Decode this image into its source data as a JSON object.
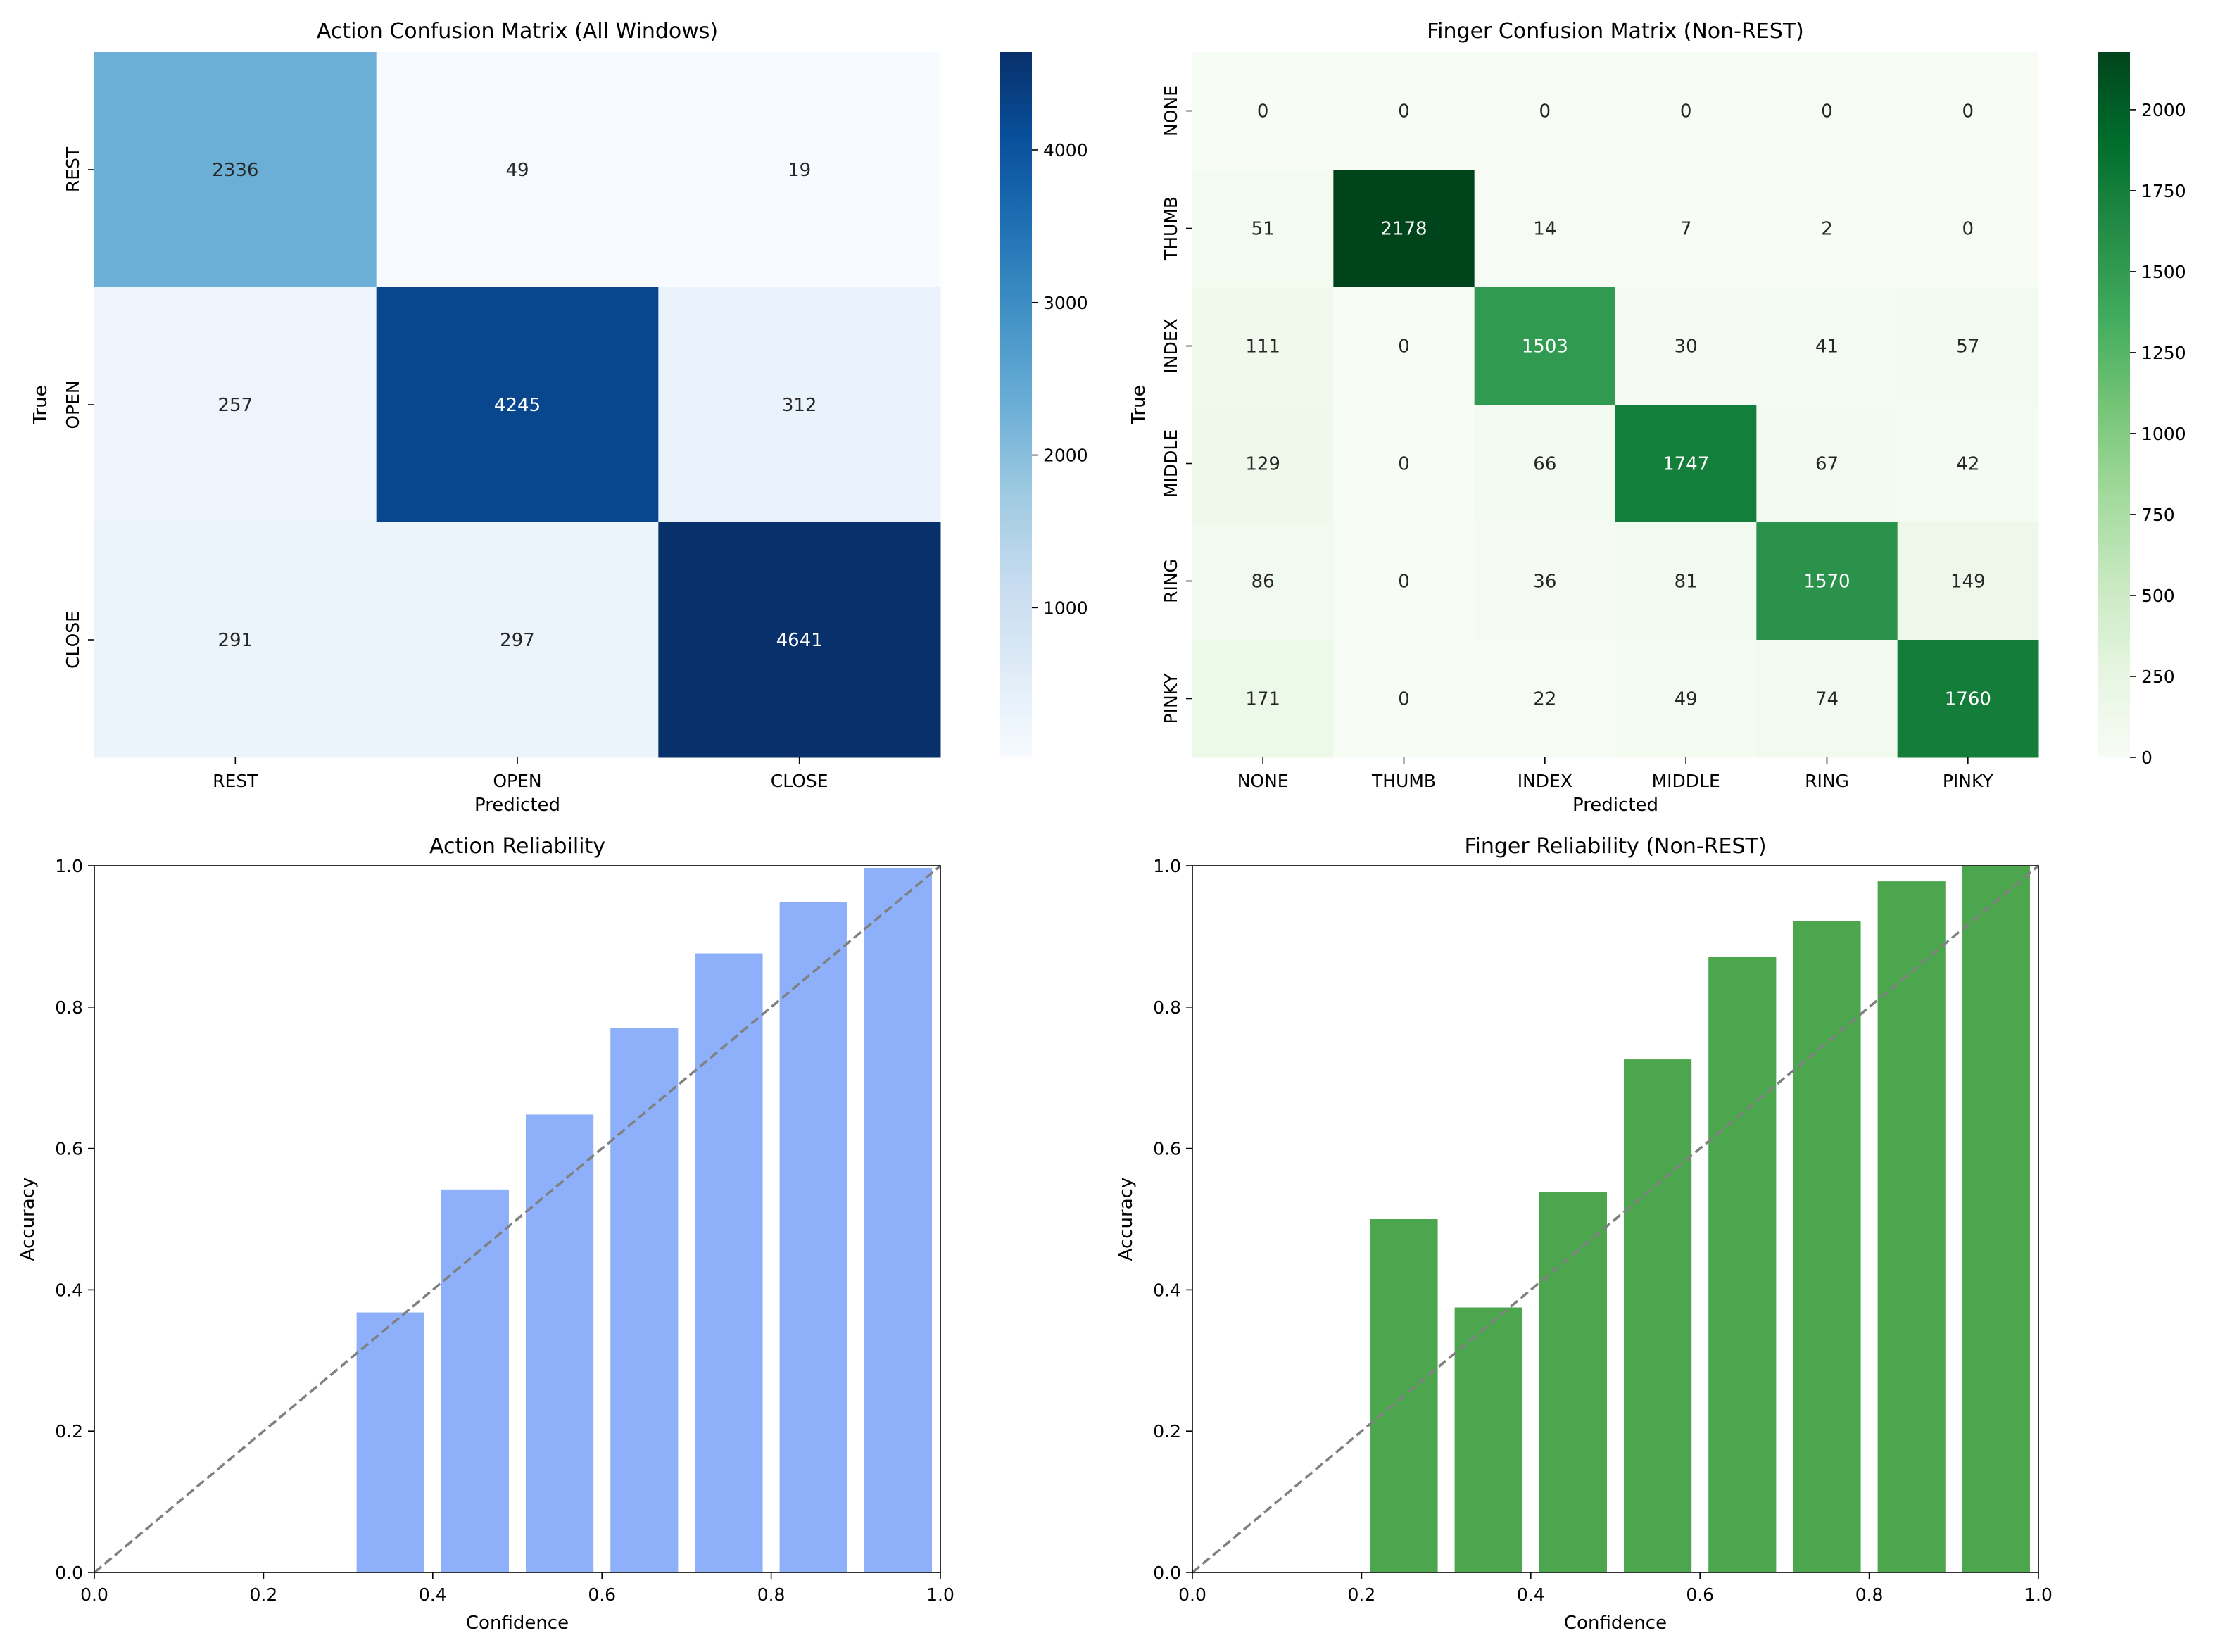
{
  "chart_data": [
    {
      "type": "heatmap",
      "title": "Action Confusion Matrix (All Windows)",
      "xlabel": "Predicted",
      "ylabel": "True",
      "x_categories": [
        "REST",
        "OPEN",
        "CLOSE"
      ],
      "y_categories": [
        "REST",
        "OPEN",
        "CLOSE"
      ],
      "values": [
        [
          2336,
          49,
          19
        ],
        [
          257,
          4245,
          312
        ],
        [
          291,
          297,
          4641
        ]
      ],
      "colormap": "Blues",
      "colors": [
        "#f7fbff",
        "#deebf7",
        "#c6dbef",
        "#9ecae1",
        "#6baed6",
        "#4292c6",
        "#2171b5",
        "#08519c",
        "#08306b"
      ],
      "vmin": 19,
      "vmax": 4641,
      "colorbar_ticks": [
        1000,
        2000,
        3000,
        4000
      ]
    },
    {
      "type": "heatmap",
      "title": "Finger Confusion Matrix (Non-REST)",
      "xlabel": "Predicted",
      "ylabel": "True",
      "x_categories": [
        "NONE",
        "THUMB",
        "INDEX",
        "MIDDLE",
        "RING",
        "PINKY"
      ],
      "y_categories": [
        "NONE",
        "THUMB",
        "INDEX",
        "MIDDLE",
        "RING",
        "PINKY"
      ],
      "values": [
        [
          0,
          0,
          0,
          0,
          0,
          0
        ],
        [
          51,
          2178,
          14,
          7,
          2,
          0
        ],
        [
          111,
          0,
          1503,
          30,
          41,
          57
        ],
        [
          129,
          0,
          66,
          1747,
          67,
          42
        ],
        [
          86,
          0,
          36,
          81,
          1570,
          149
        ],
        [
          171,
          0,
          22,
          49,
          74,
          1760
        ]
      ],
      "colormap": "Greens",
      "colors": [
        "#f7fcf5",
        "#e5f5e0",
        "#c7e9c0",
        "#a1d99b",
        "#74c476",
        "#41ab5d",
        "#238b45",
        "#006d2c",
        "#00441b"
      ],
      "vmin": 0,
      "vmax": 2178,
      "colorbar_ticks": [
        0,
        250,
        500,
        750,
        1000,
        1250,
        1500,
        1750,
        2000
      ]
    },
    {
      "type": "bar",
      "title": "Action Reliability",
      "xlabel": "Confidence",
      "ylabel": "Accuracy",
      "bin_centers": [
        0.35,
        0.45,
        0.55,
        0.65,
        0.75,
        0.85,
        0.95
      ],
      "bar_width": 0.08,
      "values": [
        0.368,
        0.542,
        0.648,
        0.77,
        0.876,
        0.949,
        0.997
      ],
      "xlim": [
        0,
        1
      ],
      "ylim": [
        0,
        1
      ],
      "x_ticks": [
        0.0,
        0.2,
        0.4,
        0.6,
        0.8,
        1.0
      ],
      "y_ticks": [
        0.0,
        0.2,
        0.4,
        0.6,
        0.8,
        1.0
      ],
      "color": "#8eb0fa",
      "diagonal_color": "#808080"
    },
    {
      "type": "bar",
      "title": "Finger Reliability (Non-REST)",
      "xlabel": "Confidence",
      "ylabel": "Accuracy",
      "bin_centers": [
        0.25,
        0.35,
        0.45,
        0.55,
        0.65,
        0.75,
        0.85,
        0.95
      ],
      "bar_width": 0.08,
      "values": [
        0.5,
        0.375,
        0.538,
        0.726,
        0.871,
        0.922,
        0.978,
        1.0
      ],
      "xlim": [
        0,
        1
      ],
      "ylim": [
        0,
        1
      ],
      "x_ticks": [
        0.0,
        0.2,
        0.4,
        0.6,
        0.8,
        1.0
      ],
      "y_ticks": [
        0.0,
        0.2,
        0.4,
        0.6,
        0.8,
        1.0
      ],
      "color": "#4ba64e",
      "diagonal_color": "#808080"
    }
  ]
}
